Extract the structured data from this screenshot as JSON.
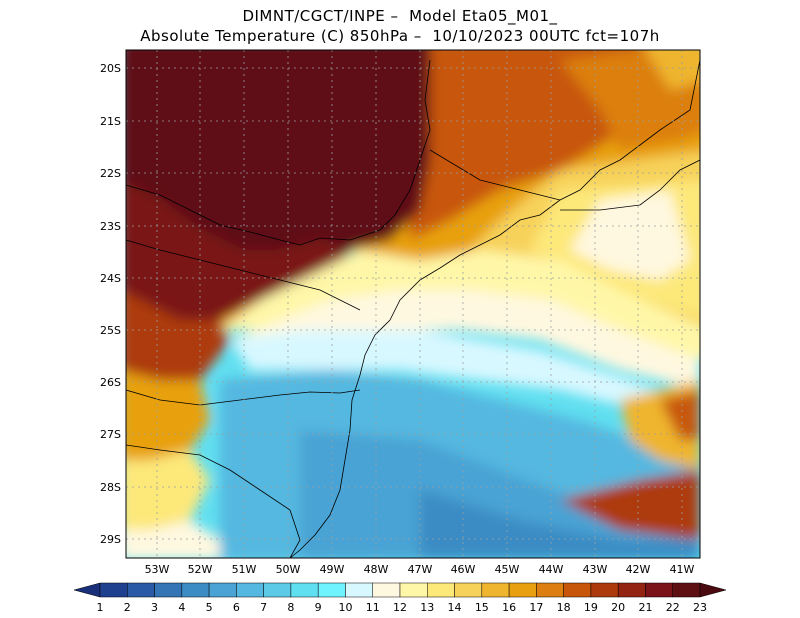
{
  "title": {
    "line1": "DIMNT/CGCT/INPE –  Model Eta05_M01_",
    "line2": "Absolute Temperature (C) 850hPa –  10/10/2023 00UTC fct=107h"
  },
  "map": {
    "lat_ticks": [
      "20S",
      "21S",
      "22S",
      "23S",
      "24S",
      "25S",
      "26S",
      "27S",
      "28S",
      "29S"
    ],
    "lon_ticks": [
      "53W",
      "52W",
      "51W",
      "50W",
      "49W",
      "48W",
      "47W",
      "46W",
      "45W",
      "44W",
      "43W",
      "42W",
      "41W"
    ],
    "grid": true
  },
  "colorbar": {
    "labels": [
      "1",
      "2",
      "3",
      "4",
      "5",
      "6",
      "7",
      "8",
      "9",
      "10",
      "11",
      "12",
      "13",
      "14",
      "15",
      "16",
      "17",
      "18",
      "19",
      "20",
      "21",
      "22",
      "23"
    ],
    "colors": [
      "#1f3f8f",
      "#2a5aa5",
      "#3574b5",
      "#3b8cc4",
      "#4aa3d4",
      "#55b8e0",
      "#5dcbe8",
      "#60dff0",
      "#6ff3ff",
      "#d8f8ff",
      "#fff8e0",
      "#fff7a8",
      "#fde87a",
      "#f7d25a",
      "#efb52e",
      "#e8a010",
      "#dc7f10",
      "#c8560a",
      "#ad3a0a",
      "#932412",
      "#7a1418",
      "#5e0f12"
    ],
    "low_arrow_color": "#1a2f7a",
    "high_arrow_color": "#4a0a10"
  }
}
